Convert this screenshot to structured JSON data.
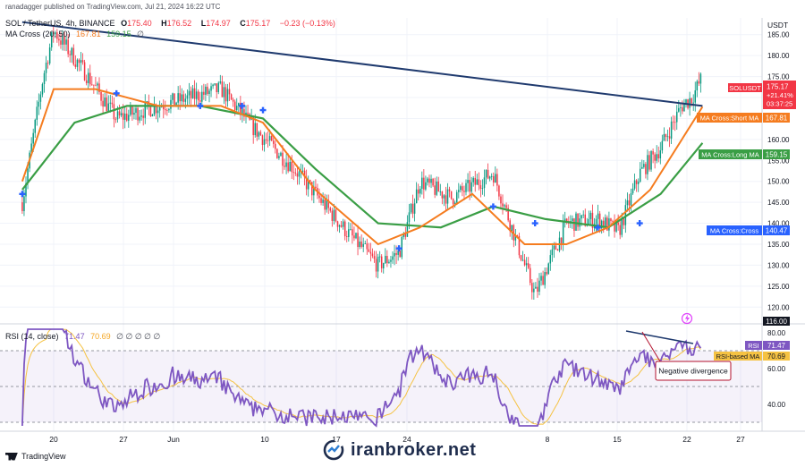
{
  "header": {
    "published": "ranadagger published on TradingView.com, Jul 21, 2024 16:22 UTC",
    "symbol": "SOL / TetherUS, 4h, BINANCE",
    "o_label": "O",
    "o_value": "175.40",
    "h_label": "H",
    "h_value": "176.52",
    "l_label": "L",
    "l_value": "174.97",
    "c_label": "C",
    "c_value": "175.17",
    "change": "−0.23 (−0.13%)",
    "ma_label": "MA Cross (20, 50)",
    "ma_short_value": "167.81",
    "ma_long_value": "159.15",
    "ma_icon": "eye-slash-icon"
  },
  "price_axis": {
    "currency": "USDT",
    "ticks": [
      "185.00",
      "180.00",
      "175.00",
      "170.00",
      "165.00",
      "160.00",
      "155.00",
      "150.00",
      "145.00",
      "140.00",
      "135.00",
      "130.00",
      "125.00",
      "120.00"
    ]
  },
  "labels": {
    "last_symbol": "SOLUSDT",
    "last_price": "175.17",
    "last_change": "+21.41%",
    "countdown": "03:37:25",
    "short_ma_name": "MA Cross:Short MA",
    "short_ma_value": "167.81",
    "long_ma_name": "MA Cross:Long MA",
    "long_ma_value": "159.15",
    "cross_name": "MA Cross:Cross",
    "cross_value": "140.47",
    "low_marker": "116.00"
  },
  "rsi": {
    "label": "RSI (14, close)",
    "rsi_value": "71.47",
    "ma_value": "70.69",
    "placeholders": "∅ ∅ ∅ ∅ ∅",
    "ticks": [
      "80.00",
      "60.00",
      "40.00"
    ],
    "rsi_tag": "RSI",
    "rsi_tag_value": "71.47",
    "ma_tag": "RSI-based MA",
    "ma_tag_value": "70.69",
    "annotation": "Negative divergence"
  },
  "time_axis": [
    "20",
    "27",
    "Jun",
    "10",
    "17",
    "24",
    "8",
    "15",
    "22",
    "27"
  ],
  "footer": {
    "brand": "TradingView",
    "watermark": "iranbroker.net"
  },
  "colors": {
    "up": "#089981",
    "down": "#f23645",
    "short_ma": "#f57c1f",
    "long_ma": "#3a9e45",
    "trendline": "#1f3a6e",
    "cross": "#2962ff",
    "rsi": "#7e57c2",
    "rsi_ma": "#f5c242"
  },
  "chart_data": [
    {
      "type": "candlestick",
      "title": "",
      "symbol": "SOL / TetherUS",
      "interval": "4h",
      "exchange": "BINANCE",
      "x": [
        "20",
        "27",
        "Jun",
        "10",
        "17",
        "24",
        "8",
        "15",
        "22"
      ],
      "ylim": [
        116,
        189
      ],
      "yscale": "linear",
      "last": {
        "open": 175.4,
        "high": 176.52,
        "low": 174.97,
        "close": 175.17
      },
      "series": [
        {
          "name": "MA Cross:Short MA",
          "last": 167.81
        },
        {
          "name": "MA Cross:Long MA",
          "last": 159.15
        }
      ],
      "close_path": [
        {
          "x": "May 17",
          "y": 145
        },
        {
          "x": "May 19",
          "y": 175
        },
        {
          "x": "May 20",
          "y": 186
        },
        {
          "x": "May 23",
          "y": 176
        },
        {
          "x": "May 26",
          "y": 165
        },
        {
          "x": "May 30",
          "y": 168
        },
        {
          "x": "Jun 5",
          "y": 172
        },
        {
          "x": "Jun 8",
          "y": 163
        },
        {
          "x": "Jun 12",
          "y": 153
        },
        {
          "x": "Jun 15",
          "y": 144
        },
        {
          "x": "Jun 17",
          "y": 138
        },
        {
          "x": "Jun 20",
          "y": 130
        },
        {
          "x": "Jun 22",
          "y": 133
        },
        {
          "x": "Jun 24",
          "y": 150
        },
        {
          "x": "Jun 27",
          "y": 146
        },
        {
          "x": "Jul 1",
          "y": 152
        },
        {
          "x": "Jul 4",
          "y": 130
        },
        {
          "x": "Jul 5",
          "y": 123
        },
        {
          "x": "Jul 8",
          "y": 140
        },
        {
          "x": "Jul 11",
          "y": 141
        },
        {
          "x": "Jul 13",
          "y": 138
        },
        {
          "x": "Jul 15",
          "y": 152
        },
        {
          "x": "Jul 17",
          "y": 158
        },
        {
          "x": "Jul 19",
          "y": 168
        },
        {
          "x": "Jul 20",
          "y": 170
        },
        {
          "x": "Jul 21",
          "y": 175
        }
      ],
      "trendline": [
        {
          "x": "May 17",
          "y": 188
        },
        {
          "x": "Jul 21",
          "y": 168
        }
      ],
      "cross_markers": [
        {
          "x": "May 17",
          "y": 147
        },
        {
          "x": "May 26",
          "y": 171
        },
        {
          "x": "Jun 3",
          "y": 168
        },
        {
          "x": "Jun 7",
          "y": 168
        },
        {
          "x": "Jun 9",
          "y": 167
        },
        {
          "x": "Jun 22",
          "y": 134
        },
        {
          "x": "Jul 1",
          "y": 144
        },
        {
          "x": "Jul 5",
          "y": 140
        },
        {
          "x": "Jul 11",
          "y": 139
        },
        {
          "x": "Jul 15",
          "y": 140
        }
      ],
      "short_ma_path": [
        {
          "x": "May 17",
          "y": 150
        },
        {
          "x": "May 20",
          "y": 172
        },
        {
          "x": "May 24",
          "y": 172
        },
        {
          "x": "May 30",
          "y": 168
        },
        {
          "x": "Jun 5",
          "y": 168
        },
        {
          "x": "Jun 9",
          "y": 164
        },
        {
          "x": "Jun 14",
          "y": 148
        },
        {
          "x": "Jun 20",
          "y": 135
        },
        {
          "x": "Jun 24",
          "y": 139
        },
        {
          "x": "Jun 29",
          "y": 147
        },
        {
          "x": "Jul 4",
          "y": 135
        },
        {
          "x": "Jul 8",
          "y": 135
        },
        {
          "x": "Jul 12",
          "y": 139
        },
        {
          "x": "Jul 16",
          "y": 148
        },
        {
          "x": "Jul 21",
          "y": 167.81
        }
      ],
      "long_ma_path": [
        {
          "x": "May 17",
          "y": 148
        },
        {
          "x": "May 22",
          "y": 164
        },
        {
          "x": "May 27",
          "y": 168
        },
        {
          "x": "Jun 3",
          "y": 168
        },
        {
          "x": "Jun 9",
          "y": 165
        },
        {
          "x": "Jun 14",
          "y": 153
        },
        {
          "x": "Jun 20",
          "y": 140
        },
        {
          "x": "Jun 26",
          "y": 139
        },
        {
          "x": "Jul 1",
          "y": 144
        },
        {
          "x": "Jul 6",
          "y": 141
        },
        {
          "x": "Jul 12",
          "y": 139
        },
        {
          "x": "Jul 17",
          "y": 147
        },
        {
          "x": "Jul 21",
          "y": 159.15
        }
      ]
    },
    {
      "type": "line",
      "title": "RSI (14, close)",
      "ylim": [
        25,
        85
      ],
      "band": [
        30,
        70
      ],
      "series": [
        {
          "name": "RSI",
          "last": 71.47
        },
        {
          "name": "RSI-based MA",
          "last": 70.69
        }
      ],
      "annotations": [
        {
          "text": "Negative divergence"
        }
      ]
    }
  ]
}
